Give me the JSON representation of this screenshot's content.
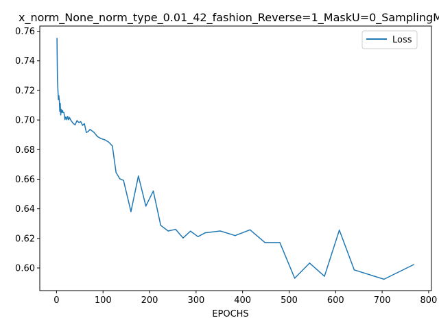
{
  "chart_data": {
    "type": "line",
    "title": "x_norm_None_norm_type_0.01_42_fashion_Reverse=1_MaskU=0_SamplingM",
    "xlabel": "EPOCHS",
    "ylabel": "",
    "xlim": [
      -36,
      806
    ],
    "ylim": [
      0.5847,
      0.7635
    ],
    "xticks": [
      0,
      100,
      200,
      300,
      400,
      500,
      600,
      700,
      800
    ],
    "yticks": [
      0.6,
      0.62,
      0.64,
      0.66,
      0.68,
      0.7,
      0.72,
      0.74,
      0.76
    ],
    "grid": false,
    "legend": "top-right",
    "series": [
      {
        "name": "Loss",
        "color": "#1f77b4",
        "x": [
          1,
          2,
          3,
          4,
          5,
          6,
          7,
          8,
          9,
          10,
          11,
          12,
          13,
          14,
          16,
          18,
          20,
          22,
          24,
          26,
          28,
          30,
          32,
          36,
          40,
          44,
          48,
          52,
          56,
          60,
          64,
          68,
          72,
          80,
          88,
          96,
          104,
          112,
          120,
          128,
          136,
          144,
          160,
          176,
          192,
          208,
          224,
          240,
          256,
          272,
          288,
          304,
          320,
          352,
          384,
          416,
          448,
          480,
          512,
          544,
          576,
          608,
          640,
          704,
          768
        ],
        "y": [
          0.7552,
          0.727,
          0.7202,
          0.7138,
          0.7164,
          0.7133,
          0.7059,
          0.7112,
          0.7034,
          0.7071,
          0.7052,
          0.7053,
          0.7065,
          0.705,
          0.705,
          0.7003,
          0.7021,
          0.7002,
          0.7024,
          0.7002,
          0.7017,
          0.7003,
          0.6993,
          0.6976,
          0.6968,
          0.6996,
          0.6983,
          0.6989,
          0.6964,
          0.6975,
          0.6916,
          0.6922,
          0.6936,
          0.6918,
          0.6888,
          0.6874,
          0.6866,
          0.6851,
          0.6825,
          0.6645,
          0.6603,
          0.6592,
          0.6381,
          0.6622,
          0.6418,
          0.652,
          0.6288,
          0.625,
          0.6261,
          0.6203,
          0.6249,
          0.6212,
          0.6238,
          0.625,
          0.6219,
          0.6258,
          0.6172,
          0.6172,
          0.5931,
          0.6033,
          0.5944,
          0.6256,
          0.5987,
          0.5924,
          0.6023
        ]
      }
    ]
  }
}
